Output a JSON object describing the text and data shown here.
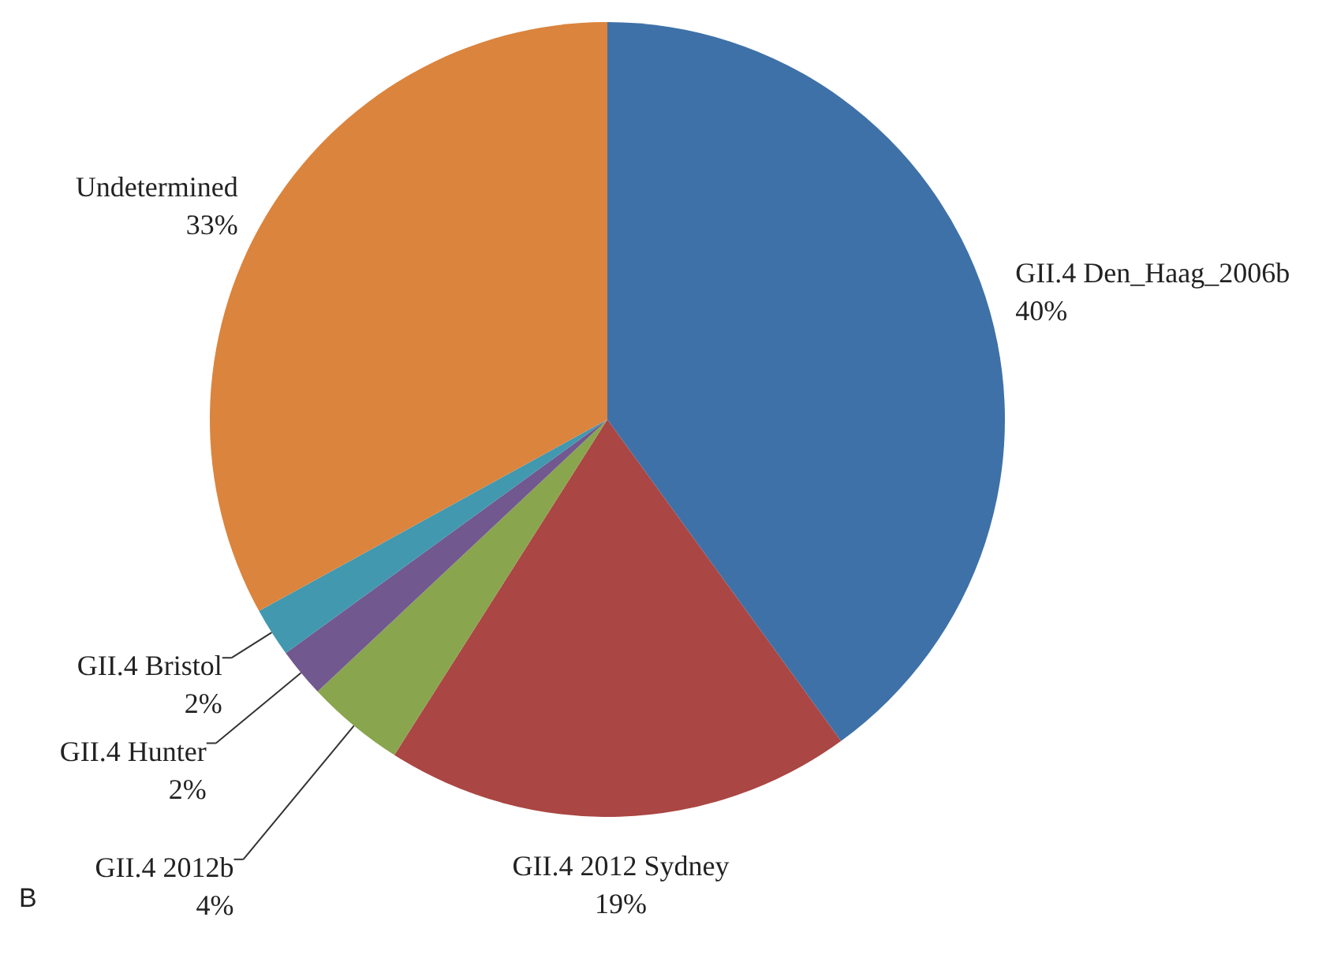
{
  "chart_data": {
    "type": "pie",
    "categories": [
      "GII.4 Den_Haag_2006b",
      "GII.4 2012 Sydney",
      "GII.4 2012b",
      "GII.4 Hunter",
      "GII.4 Bristol",
      "Undetermined"
    ],
    "values": [
      40,
      19,
      4,
      2,
      2,
      33
    ],
    "value_labels": [
      "40%",
      "19%",
      "4%",
      "2%",
      "2%",
      "33%"
    ],
    "colors": [
      "#3e71a8",
      "#aa4643",
      "#89a54e",
      "#71588f",
      "#4198af",
      "#db843d"
    ],
    "annotations": [
      "B"
    ]
  }
}
